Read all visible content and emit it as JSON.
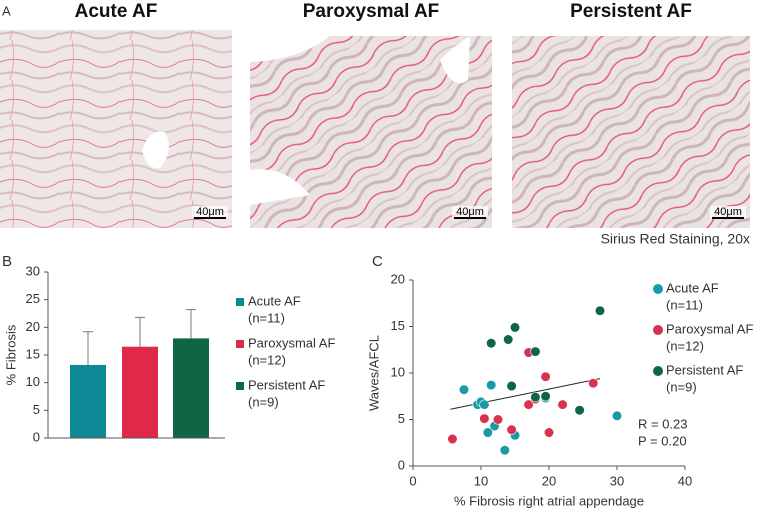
{
  "panel_a": {
    "label": "A",
    "titles": [
      "Acute AF",
      "Paroxysmal AF",
      "Persistent AF"
    ],
    "scale_labels": [
      "40μm",
      "40μm",
      "40μm"
    ],
    "caption": "Sirius Red Staining, 20x"
  },
  "chart_data": [
    {
      "type": "bar",
      "panel": "B",
      "ylabel": "% Fibrosis",
      "ylim": [
        0,
        30
      ],
      "yticks": [
        0,
        5,
        10,
        15,
        20,
        25,
        30
      ],
      "series": [
        {
          "name": "Acute AF",
          "note": "(n=11)",
          "color": "#0e8a96",
          "values": [
            13.2
          ],
          "errors": [
            6.0
          ]
        },
        {
          "name": "Paroxysmal AF",
          "note": "(n=12)",
          "color": "#e0284a",
          "values": [
            16.5
          ],
          "errors": [
            5.3
          ]
        },
        {
          "name": "Persistent AF",
          "note": "(n=9)",
          "color": "#0f6645",
          "values": [
            18.0
          ],
          "errors": [
            5.2
          ]
        }
      ]
    },
    {
      "type": "scatter",
      "panel": "C",
      "xlabel": "% Fibrosis right atrial appendage",
      "ylabel": "Waves/AFCL",
      "xlim": [
        0,
        40
      ],
      "xticks": [
        0,
        10,
        20,
        30,
        40
      ],
      "ylim": [
        0,
        20
      ],
      "yticks": [
        0,
        5,
        10,
        15,
        20
      ],
      "annotations": [
        "R = 0.23",
        "P = 0.20"
      ],
      "trend": {
        "x": [
          5.5,
          27.5
        ],
        "y": [
          6.1,
          9.4
        ]
      },
      "series": [
        {
          "name": "Acute AF",
          "note": "(n=11)",
          "color": "#1a9aa6",
          "x": [
            7.5,
            11.5,
            9.5,
            10,
            10.5,
            12,
            11,
            13.5,
            15,
            19.5,
            30
          ],
          "values": [
            8.2,
            8.7,
            6.6,
            6.9,
            6.6,
            4.3,
            3.6,
            1.7,
            3.3,
            7.3,
            5.4
          ]
        },
        {
          "name": "Paroxysmal AF",
          "note": "(n=12)",
          "color": "#d8324f",
          "x": [
            5.8,
            10.5,
            12.5,
            14.5,
            17,
            17,
            19.5,
            19.5,
            20,
            22,
            26.5,
            18
          ],
          "values": [
            2.9,
            5.1,
            5.0,
            3.9,
            6.6,
            12.2,
            9.6,
            7.5,
            3.6,
            6.6,
            8.9,
            7.2
          ]
        },
        {
          "name": "Persistent AF",
          "note": "(n=9)",
          "color": "#0f6645",
          "x": [
            11.5,
            14,
            15,
            14.5,
            18,
            18,
            19.5,
            24.5,
            27.5
          ],
          "values": [
            13.2,
            13.6,
            14.9,
            8.6,
            12.3,
            7.4,
            7.5,
            6.0,
            16.7
          ]
        }
      ]
    }
  ]
}
